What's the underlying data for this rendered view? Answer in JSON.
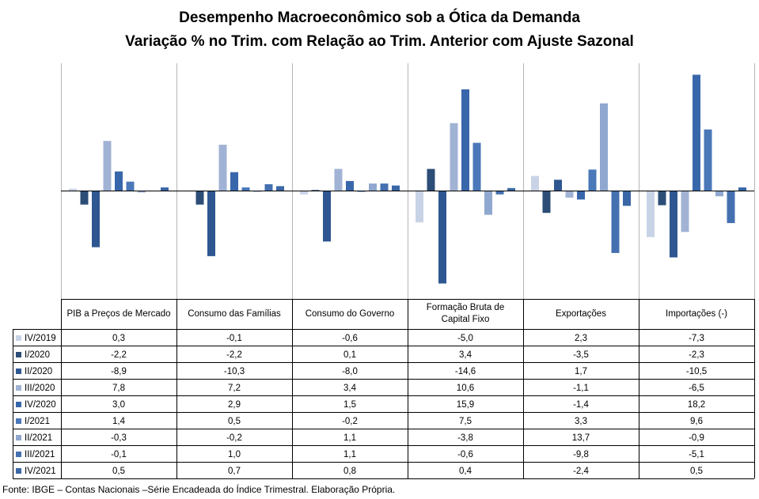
{
  "title": "Desempenho Macroeconômico sob a Ótica da Demanda",
  "subtitle": "Variação % no Trim. com Relação ao Trim. Anterior com Ajuste Sazonal",
  "source": "Fonte: IBGE – Contas Nacionais –Série Encadeada do Índice Trimestral. Elaboração Própria.",
  "chart_data": {
    "type": "bar",
    "title": "Desempenho Macroeconômico sob a Ótica da Demanda",
    "subtitle": "Variação % no Trim. com Relação ao Trim. Anterior com Ajuste Sazonal",
    "categories": [
      "PIB a Preços de Mercado",
      "Consumo das Famílias",
      "Consumo do Governo",
      "Formação Bruta de Capital Fixo",
      "Exportações",
      "Importações (-)"
    ],
    "legend_position": "table-left",
    "grid": false,
    "series": [
      {
        "name": "IV/2019",
        "color": "#c9d3e6",
        "values": [
          0.3,
          -0.1,
          -0.6,
          -5.0,
          2.3,
          -7.3
        ],
        "labels": [
          "0,3",
          "-0,1",
          "-0,6",
          "-5,0",
          "2,3",
          "-7,3"
        ]
      },
      {
        "name": "I/2020",
        "color": "#2c4d76",
        "values": [
          -2.2,
          -2.2,
          0.1,
          3.4,
          -3.5,
          -2.3
        ],
        "labels": [
          "-2,2",
          "-2,2",
          "0,1",
          "3,4",
          "-3,5",
          "-2,3"
        ]
      },
      {
        "name": "II/2020",
        "color": "#2e5791",
        "values": [
          -8.9,
          -10.3,
          -8.0,
          -14.6,
          1.7,
          -10.5
        ],
        "labels": [
          "-8,9",
          "-10,3",
          "-8,0",
          "-14,6",
          "1,7",
          "-10,5"
        ]
      },
      {
        "name": "III/2020",
        "color": "#a1b3d4",
        "values": [
          7.8,
          7.2,
          3.4,
          10.6,
          -1.1,
          -6.5
        ],
        "labels": [
          "7,8",
          "7,2",
          "3,4",
          "10,6",
          "-1,1",
          "-6,5"
        ]
      },
      {
        "name": "IV/2020",
        "color": "#3866aa",
        "values": [
          3.0,
          2.9,
          1.5,
          15.9,
          -1.4,
          18.2
        ],
        "labels": [
          "3,0",
          "2,9",
          "1,5",
          "15,9",
          "-1,4",
          "18,2"
        ]
      },
      {
        "name": "I/2021",
        "color": "#4a78b8",
        "values": [
          1.4,
          0.5,
          -0.2,
          7.5,
          3.3,
          9.6
        ],
        "labels": [
          "1,4",
          "0,5",
          "-0,2",
          "7,5",
          "3,3",
          "9,6"
        ]
      },
      {
        "name": "II/2021",
        "color": "#90a7cf",
        "values": [
          -0.3,
          -0.2,
          1.1,
          -3.8,
          13.7,
          -0.9
        ],
        "labels": [
          "-0,3",
          "-0,2",
          "1,1",
          "-3,8",
          "13,7",
          "-0,9"
        ]
      },
      {
        "name": "III/2021",
        "color": "#4470b0",
        "values": [
          -0.1,
          1.0,
          1.1,
          -0.6,
          -9.8,
          -5.1
        ],
        "labels": [
          "-0,1",
          "1,0",
          "1,1",
          "-0,6",
          "-9,8",
          "-5,1"
        ]
      },
      {
        "name": "IV/2021",
        "color": "#3a67a6",
        "values": [
          0.5,
          0.7,
          0.8,
          0.4,
          -2.4,
          0.5
        ],
        "labels": [
          "0,5",
          "0,7",
          "0,8",
          "0,4",
          "-2,4",
          "0,5"
        ]
      }
    ]
  }
}
